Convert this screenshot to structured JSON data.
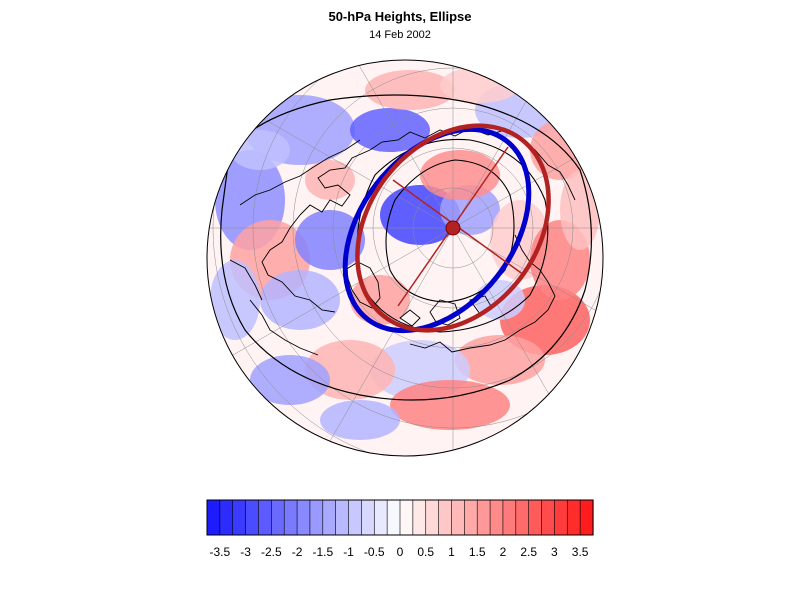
{
  "title": "50-hPa Heights, Ellipse",
  "subtitle": "14 Feb 2002",
  "colors": {
    "negative_max": "#1414ff",
    "neutral": "#ffffff",
    "positive_max": "#ff1414",
    "ellipse_observed": "#0000cc",
    "ellipse_fit": "#b22222",
    "coastline": "#000000",
    "contour": "#000000"
  },
  "colorbar": {
    "min": -3.75,
    "max": 3.75,
    "step": 0.25,
    "tick_labels": [
      "-3.5",
      "-3",
      "-2.5",
      "-2",
      "-1.5",
      "-1",
      "-0.5",
      "0",
      "0.5",
      "1",
      "1.5",
      "2",
      "2.5",
      "3",
      "3.5"
    ]
  },
  "legend_position": "bottom"
}
